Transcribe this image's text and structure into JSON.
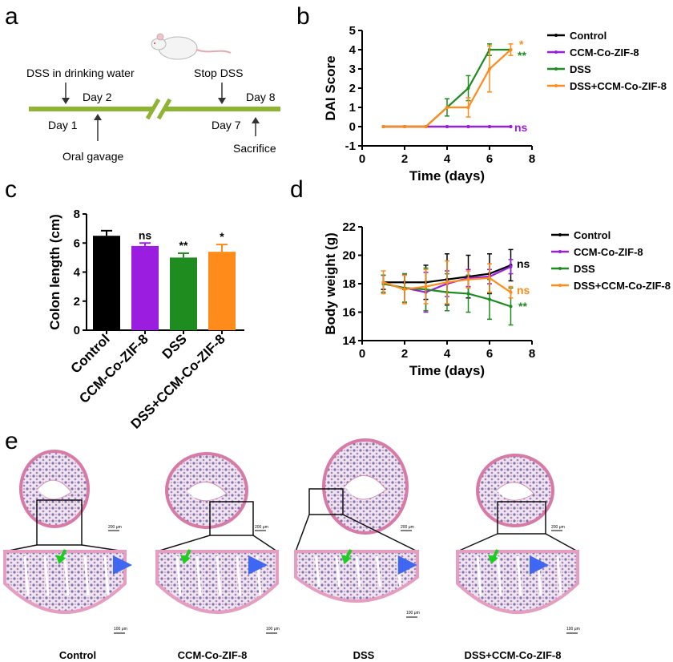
{
  "panels": {
    "a": "a",
    "b": "b",
    "c": "c",
    "d": "d",
    "e": "e"
  },
  "colors": {
    "control": "#000000",
    "ccm": "#9b1ee0",
    "dss": "#1e8c1e",
    "dssccm": "#ff8c1a",
    "timeline": "#8fb333"
  },
  "timeline": {
    "dss_water": "DSS in drinking water",
    "day2": "Day 2",
    "day1": "Day 1",
    "oral": "Oral gavage",
    "stop": "Stop DSS",
    "day8": "Day 8",
    "day7": "Day 7",
    "sacrifice": "Sacrifice"
  },
  "histology": {
    "captions": [
      "Control",
      "CCM-Co-ZIF-8",
      "DSS",
      "DSS+CCM-Co-ZIF-8"
    ],
    "scale_top": "200 μm",
    "scale_bottom": "100 μm"
  },
  "chart_data": [
    {
      "panel": "b",
      "type": "line",
      "xlabel": "Time (days)",
      "ylabel": "DAI Score",
      "xlim": [
        0,
        8
      ],
      "ylim": [
        -1,
        5
      ],
      "xticks": [
        "0",
        "2",
        "4",
        "6",
        "8"
      ],
      "yticks": [
        "-1",
        "0",
        "1",
        "2",
        "3",
        "4",
        "5"
      ],
      "legend_position": "right",
      "series": [
        {
          "name": "Control",
          "x": [
            1,
            2,
            3,
            4,
            5,
            6,
            7
          ],
          "y": [
            0,
            0,
            0,
            0,
            0,
            0,
            0
          ],
          "err": [
            0,
            0,
            0,
            0,
            0,
            0,
            0
          ]
        },
        {
          "name": "CCM-Co-ZIF-8",
          "x": [
            1,
            2,
            3,
            4,
            5,
            6,
            7
          ],
          "y": [
            0,
            0,
            0,
            0,
            0,
            0,
            0
          ],
          "err": [
            0,
            0,
            0,
            0,
            0,
            0,
            0
          ]
        },
        {
          "name": "DSS",
          "x": [
            1,
            2,
            3,
            4,
            5,
            6,
            7
          ],
          "y": [
            0,
            0,
            0,
            1,
            2,
            4,
            4
          ],
          "err": [
            0,
            0,
            0,
            0.45,
            0.65,
            0.3,
            0
          ]
        },
        {
          "name": "DSS+CCM-Co-ZIF-8",
          "x": [
            1,
            2,
            3,
            4,
            5,
            6,
            7
          ],
          "y": [
            0,
            0,
            0,
            1,
            1,
            3,
            4
          ],
          "err": [
            0,
            0,
            0,
            0,
            0.5,
            1.2,
            0.3
          ]
        }
      ],
      "annotations": [
        {
          "text": "*",
          "series": "DSS+CCM-Co-ZIF-8"
        },
        {
          "text": "**",
          "series": "DSS"
        },
        {
          "text": "ns",
          "series": "CCM-Co-ZIF-8"
        }
      ]
    },
    {
      "panel": "c",
      "type": "bar",
      "ylabel": "Colon length (cm)",
      "ylim": [
        0,
        8
      ],
      "yticks": [
        "0",
        "2",
        "4",
        "6",
        "8"
      ],
      "categories": [
        "Control",
        "CCM-Co-ZIF-8",
        "DSS",
        "DSS+CCM-Co-ZIF-8"
      ],
      "values": [
        6.5,
        5.8,
        5.0,
        5.4
      ],
      "err": [
        0.35,
        0.2,
        0.3,
        0.5
      ],
      "sig": [
        "",
        "ns",
        "**",
        "*"
      ]
    },
    {
      "panel": "d",
      "type": "line",
      "xlabel": "Time (days)",
      "ylabel": "Body weight (g)",
      "xlim": [
        0,
        8
      ],
      "ylim": [
        14,
        22
      ],
      "xticks": [
        "0",
        "2",
        "4",
        "6",
        "8"
      ],
      "yticks": [
        "14",
        "16",
        "18",
        "20",
        "22"
      ],
      "legend_position": "right",
      "series": [
        {
          "name": "Control",
          "x": [
            1,
            2,
            3,
            4,
            5,
            6,
            7
          ],
          "y": [
            18.1,
            18.1,
            18.1,
            18.3,
            18.5,
            18.7,
            19.3
          ],
          "err": [
            0.5,
            0.5,
            1.2,
            1.8,
            1.5,
            1.4,
            1.1
          ]
        },
        {
          "name": "CCM-Co-ZIF-8",
          "x": [
            1,
            2,
            3,
            4,
            5,
            6,
            7
          ],
          "y": [
            18.0,
            17.7,
            17.4,
            18.0,
            18.4,
            18.5,
            19.2
          ],
          "err": [
            0.6,
            1.0,
            1.4,
            0.9,
            0.6,
            0.5,
            0.5
          ]
        },
        {
          "name": "DSS",
          "x": [
            1,
            2,
            3,
            4,
            5,
            6,
            7
          ],
          "y": [
            18.0,
            17.7,
            17.6,
            17.4,
            17.3,
            16.9,
            16.4
          ],
          "err": [
            0.6,
            1.0,
            1.5,
            1.3,
            1.3,
            1.4,
            1.3
          ]
        },
        {
          "name": "DSS+CCM-Co-ZIF-8",
          "x": [
            1,
            2,
            3,
            4,
            5,
            6,
            7
          ],
          "y": [
            18.1,
            17.6,
            17.8,
            18.1,
            18.3,
            18.4,
            17.4
          ],
          "err": [
            0.8,
            1.0,
            1.2,
            1.5,
            0.6,
            1.0,
            0.4
          ]
        }
      ],
      "annotations": [
        {
          "text": "ns",
          "series": "Control"
        },
        {
          "text": "ns",
          "series": "DSS+CCM-Co-ZIF-8"
        },
        {
          "text": "**",
          "series": "DSS"
        }
      ]
    }
  ]
}
